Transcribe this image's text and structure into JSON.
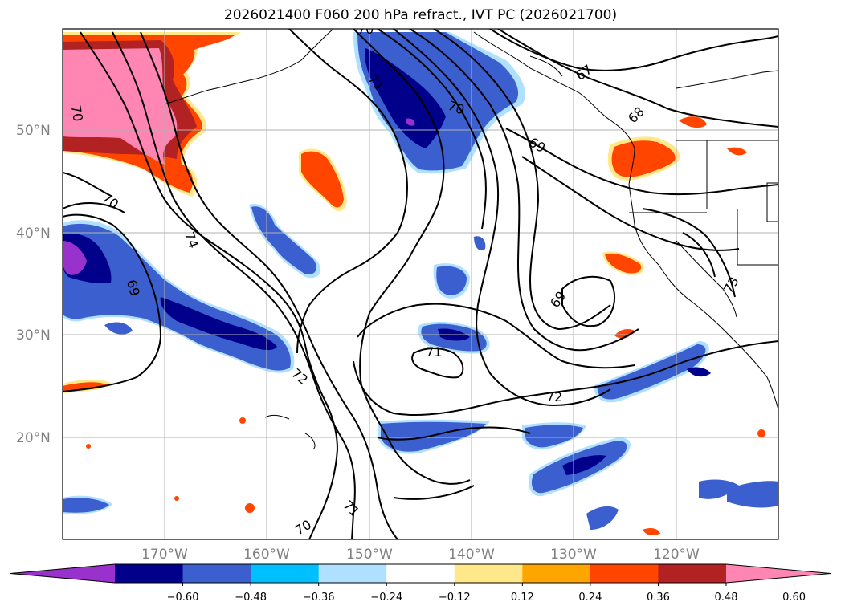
{
  "title": "2026021400 F060 200 hPa refract., IVT PC (2026021700)",
  "lat_labels": [
    "50°N",
    "40°N",
    "30°N",
    "20°N"
  ],
  "lon_labels": [
    "170°W",
    "160°W",
    "150°W",
    "140°W",
    "130°W",
    "120°W"
  ],
  "contour_labels": [
    "70",
    "70",
    "74",
    "69",
    "72",
    "70",
    "71",
    "70",
    "69",
    "67",
    "68",
    "69",
    "71",
    "72",
    "73",
    "70",
    "71"
  ],
  "colorbar": {
    "ticks": [
      "−0.60",
      "−0.48",
      "−0.36",
      "−0.24",
      "−0.12",
      "0.12",
      "0.24",
      "0.36",
      "0.48",
      "0.60"
    ],
    "colors": [
      "#9932cc",
      "#00008b",
      "#3c5fd0",
      "#00bfff",
      "#b0e0ff",
      "#ffffff",
      "#ffe88a",
      "#ffa500",
      "#ff4500",
      "#b22222",
      "#ff85b3"
    ]
  },
  "colors": {
    "pink": "#ff85b3",
    "darkred": "#b22222",
    "orangered": "#ff4500",
    "orange": "#ffa500",
    "yellow": "#ffe88a",
    "purple": "#9932cc",
    "navy": "#00008b",
    "blue": "#3c5fd0",
    "skyblue": "#00bfff",
    "lightblue": "#b0e0ff"
  }
}
